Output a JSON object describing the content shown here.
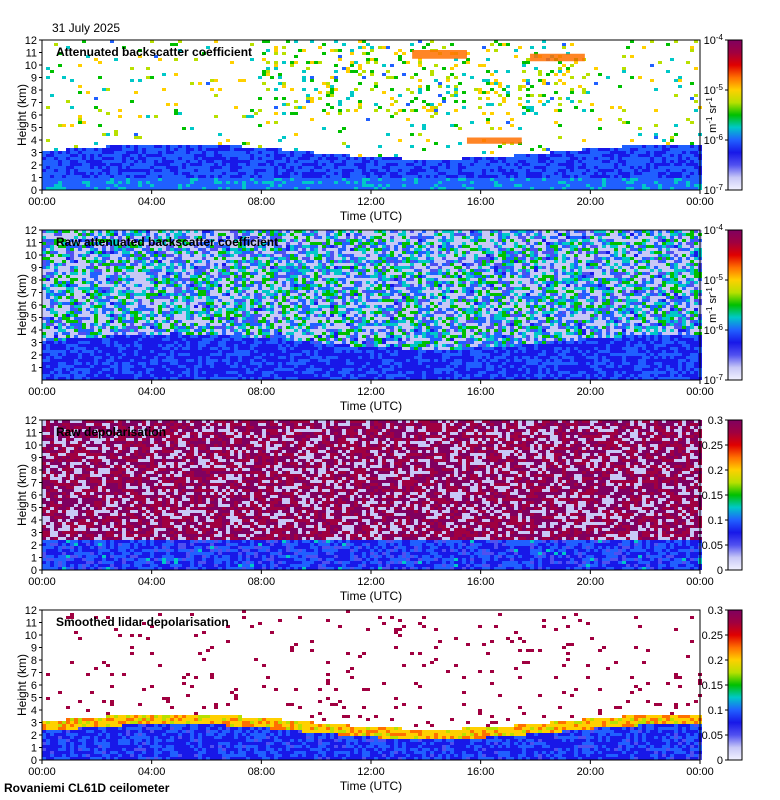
{
  "date": "31 July 2025",
  "footer": "Rovaniemi CL61D ceilometer",
  "colormaps": {
    "backscatter": [
      "#f2f2ff",
      "#c8c8f6",
      "#5050f0",
      "#1818e8",
      "#2060ff",
      "#00c8c8",
      "#00c000",
      "#b8e000",
      "#ffd000",
      "#ff7000",
      "#e00000",
      "#a00040",
      "#800060"
    ],
    "depolarisation": [
      "#f2f2ff",
      "#c8c8f6",
      "#5050f0",
      "#1818e8",
      "#2060ff",
      "#00c8c8",
      "#00c000",
      "#b8e000",
      "#ffd000",
      "#ff7000",
      "#e00000",
      "#a00040",
      "#800060"
    ]
  },
  "chart_data": [
    {
      "type": "heatmap",
      "title": "Attenuated backscatter coefficient",
      "xlabel": "Time (UTC)",
      "ylabel": "Height (km)",
      "xticks": [
        "00:00",
        "04:00",
        "08:00",
        "12:00",
        "16:00",
        "20:00",
        "00:00"
      ],
      "yticks": [
        "0",
        "1",
        "2",
        "3",
        "4",
        "5",
        "6",
        "7",
        "8",
        "9",
        "10",
        "11",
        "12"
      ],
      "ylim": [
        0,
        12
      ],
      "colorbar": {
        "scale": "log",
        "ticks": [
          "10",
          "10",
          "10",
          "10"
        ],
        "exponents": [
          "-4",
          "-5",
          "-6",
          "-7"
        ],
        "unit_base": "m",
        "unit_exp1": "-1",
        "unit_mid": " sr",
        "unit_exp2": "-1"
      },
      "features": [
        {
          "kind": "boundary_layer",
          "t_start": 0,
          "t_end": 24,
          "top_km": 3.5
        },
        {
          "kind": "cloud",
          "t_start": 13.5,
          "t_end": 15.5,
          "base_km": 10.5,
          "top_km": 11.2
        },
        {
          "kind": "cloud",
          "t_start": 17.8,
          "t_end": 19.8,
          "base_km": 10.3,
          "top_km": 10.9
        },
        {
          "kind": "cloud",
          "t_start": 15.5,
          "t_end": 17.5,
          "base_km": 3.7,
          "top_km": 4.2
        }
      ]
    },
    {
      "type": "heatmap",
      "title": "Raw attenuated backscatter coefficient",
      "xlabel": "Time (UTC)",
      "ylabel": "Height (km)",
      "xticks": [
        "00:00",
        "04:00",
        "08:00",
        "12:00",
        "16:00",
        "20:00",
        "00:00"
      ],
      "yticks": [
        "1",
        "2",
        "3",
        "4",
        "5",
        "6",
        "7",
        "8",
        "9",
        "10",
        "11",
        "12"
      ],
      "ylim": [
        0,
        12
      ],
      "colorbar": {
        "scale": "log",
        "ticks": [
          "10",
          "10",
          "10",
          "10"
        ],
        "exponents": [
          "-4",
          "-5",
          "-6",
          "-7"
        ],
        "unit_base": "m",
        "unit_exp1": "-1",
        "unit_mid": " sr",
        "unit_exp2": "-1"
      }
    },
    {
      "type": "heatmap",
      "title": "Raw depolarisation",
      "xlabel": "Time (UTC)",
      "ylabel": "Height (km)",
      "xticks": [
        "00:00",
        "04:00",
        "08:00",
        "12:00",
        "16:00",
        "20:00",
        "00:00"
      ],
      "yticks": [
        "0",
        "1",
        "2",
        "3",
        "4",
        "5",
        "6",
        "7",
        "8",
        "9",
        "10",
        "11",
        "12"
      ],
      "ylim": [
        0,
        12
      ],
      "colorbar": {
        "scale": "linear",
        "range": [
          0,
          0.3
        ],
        "ticks": [
          "0.3",
          "0.25",
          "0.2",
          "0.15",
          "0.1",
          "0.05",
          "0"
        ]
      }
    },
    {
      "type": "heatmap",
      "title": "Smoothed lidar depolarisation",
      "xlabel": "Time (UTC)",
      "ylabel": "Height (km)",
      "xticks": [
        "00:00",
        "04:00",
        "08:00",
        "12:00",
        "16:00",
        "20:00",
        "00:00"
      ],
      "yticks": [
        "0",
        "1",
        "2",
        "3",
        "4",
        "5",
        "6",
        "7",
        "8",
        "9",
        "10",
        "11",
        "12"
      ],
      "ylim": [
        0,
        12
      ],
      "colorbar": {
        "scale": "linear",
        "range": [
          0,
          0.3
        ],
        "ticks": [
          "0.3",
          "0.25",
          "0.2",
          "0.15",
          "0.1",
          "0.05",
          "0"
        ]
      }
    }
  ]
}
